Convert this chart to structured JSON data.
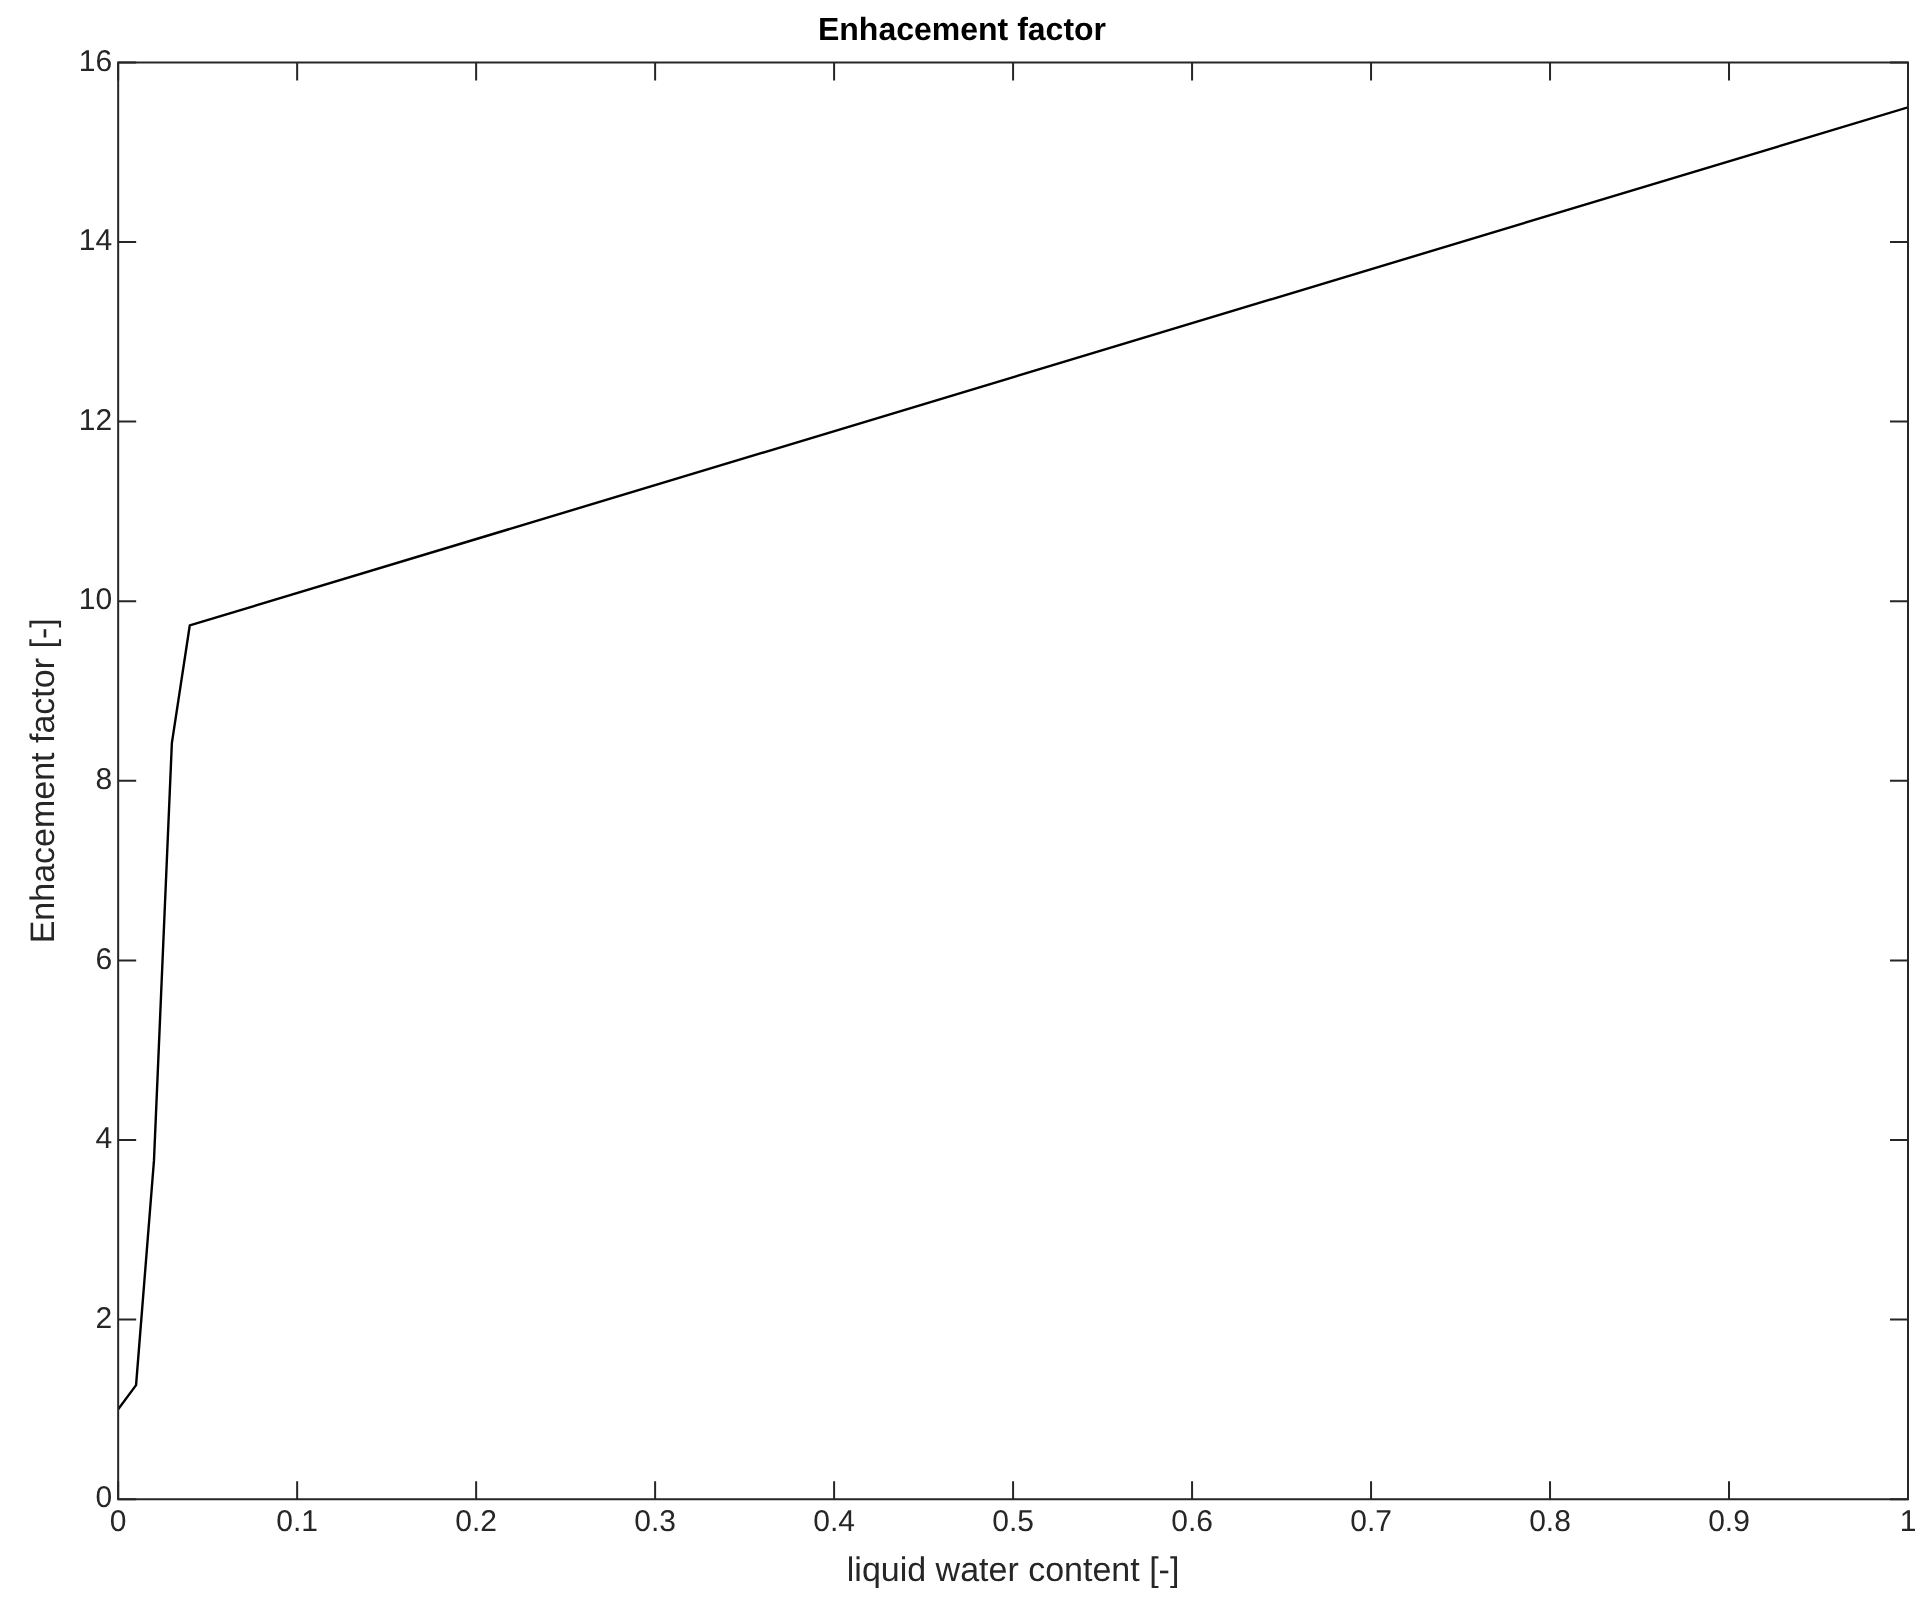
{
  "chart_data": {
    "type": "line",
    "title": "Enhacement factor",
    "xlabel": "liquid water content [-]",
    "ylabel": "Enhacement factor [-]",
    "x": [
      0,
      0.01,
      0.02,
      0.03,
      0.04,
      1
    ],
    "series": [
      {
        "color": "#000000",
        "values": [
          1.0,
          1.27,
          3.77,
          8.42,
          9.73,
          15.5
        ]
      }
    ],
    "xlim": [
      0,
      1
    ],
    "xticks": [
      0,
      0.1,
      0.2,
      0.3,
      0.4,
      0.5,
      0.6,
      0.7,
      0.8,
      0.9,
      1
    ],
    "ylim": [
      0,
      16
    ],
    "yticks": [
      0,
      2,
      4,
      6,
      8,
      10,
      12,
      14,
      16
    ],
    "grid": false,
    "legend": false,
    "marker": "none",
    "line_style": "solid"
  }
}
